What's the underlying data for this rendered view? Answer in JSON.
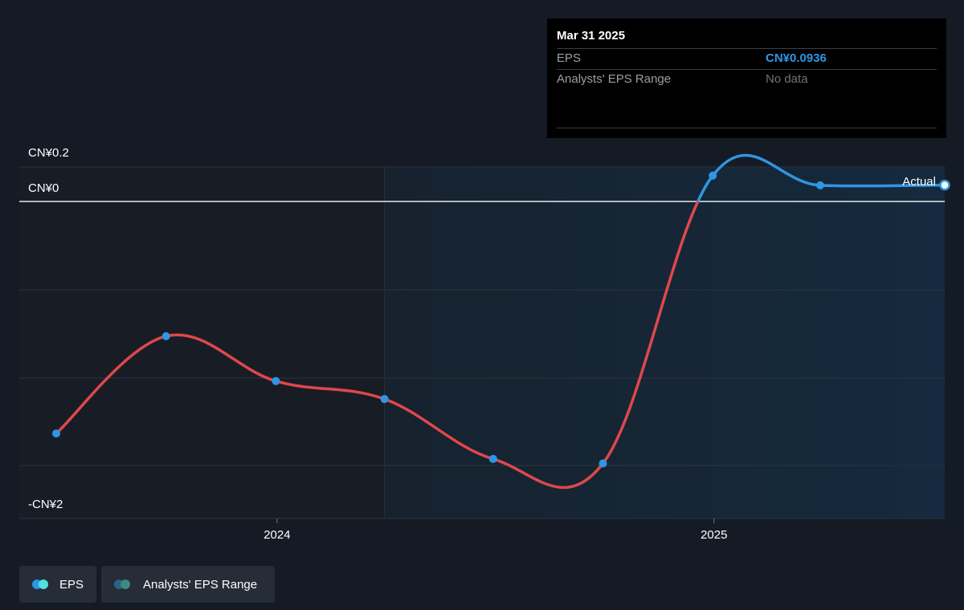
{
  "chart_data": {
    "type": "line",
    "y_tick_labels": [
      "CN¥0.2",
      "CN¥0",
      "-CN¥2"
    ],
    "x_tick_labels": [
      "2024",
      "2025"
    ],
    "series": [
      {
        "name": "EPS",
        "points": [
          {
            "x": "2023-06-30",
            "y": -1.55
          },
          {
            "x": "2023-09-30",
            "y": -0.9
          },
          {
            "x": "2023-12-31",
            "y": -1.2
          },
          {
            "x": "2024-03-31",
            "y": -1.32
          },
          {
            "x": "2024-06-30",
            "y": -1.72
          },
          {
            "x": "2024-09-30",
            "y": -1.75
          },
          {
            "x": "2024-12-31",
            "y": 0.15
          },
          {
            "x": "2025-03-31",
            "y": 0.0936
          }
        ]
      }
    ],
    "annotation": "Actual",
    "colors": {
      "negative": "#e0474c",
      "positive": "#2f96e3",
      "range": "#4db6ac"
    }
  },
  "tooltip": {
    "date": "Mar 31 2025",
    "rows": [
      {
        "label": "EPS",
        "value": "CN¥0.0936"
      },
      {
        "label": "Analysts' EPS Range",
        "value": "No data"
      }
    ]
  },
  "legend": [
    {
      "label": "EPS"
    },
    {
      "label": "Analysts' EPS Range"
    }
  ]
}
